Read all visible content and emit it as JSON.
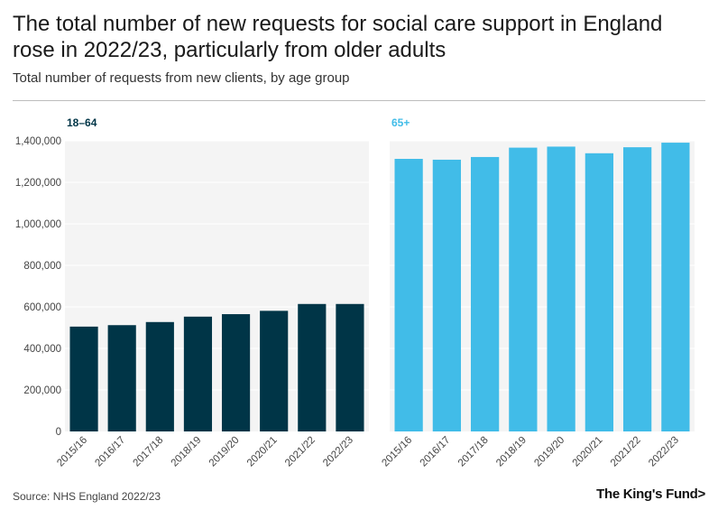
{
  "title": "The total number of new requests for social care support in England rose in 2022/23, particularly from older adults",
  "subtitle": "Total number of requests from new clients, by age group",
  "source": "Source: NHS England 2022/23",
  "logo": "The King's Fund>",
  "colors": {
    "panel_bg": "#f4f4f4",
    "series_18_64": "#003547",
    "series_65_plus": "#41bce8",
    "grid": "#ffffff",
    "axis_text": "#444444"
  },
  "chart_data": {
    "type": "bar",
    "title": "Total number of requests from new clients, by age group",
    "categories": [
      "2015/16",
      "2016/17",
      "2017/18",
      "2018/19",
      "2019/20",
      "2020/21",
      "2021/22",
      "2022/23"
    ],
    "ylim": [
      0,
      1400000
    ],
    "yticks": [
      0,
      200000,
      400000,
      600000,
      800000,
      1000000,
      1200000,
      1400000
    ],
    "ytick_labels": [
      "0",
      "200,000",
      "400,000",
      "600,000",
      "800,000",
      "1,000,000",
      "1,200,000",
      "1,400,000"
    ],
    "series": [
      {
        "name": "18–64",
        "values": [
          505000,
          512000,
          527000,
          553000,
          565000,
          581000,
          614000,
          614000
        ]
      },
      {
        "name": "65+",
        "values": [
          1313000,
          1309000,
          1322000,
          1367000,
          1372000,
          1340000,
          1369000,
          1391000
        ]
      }
    ]
  }
}
